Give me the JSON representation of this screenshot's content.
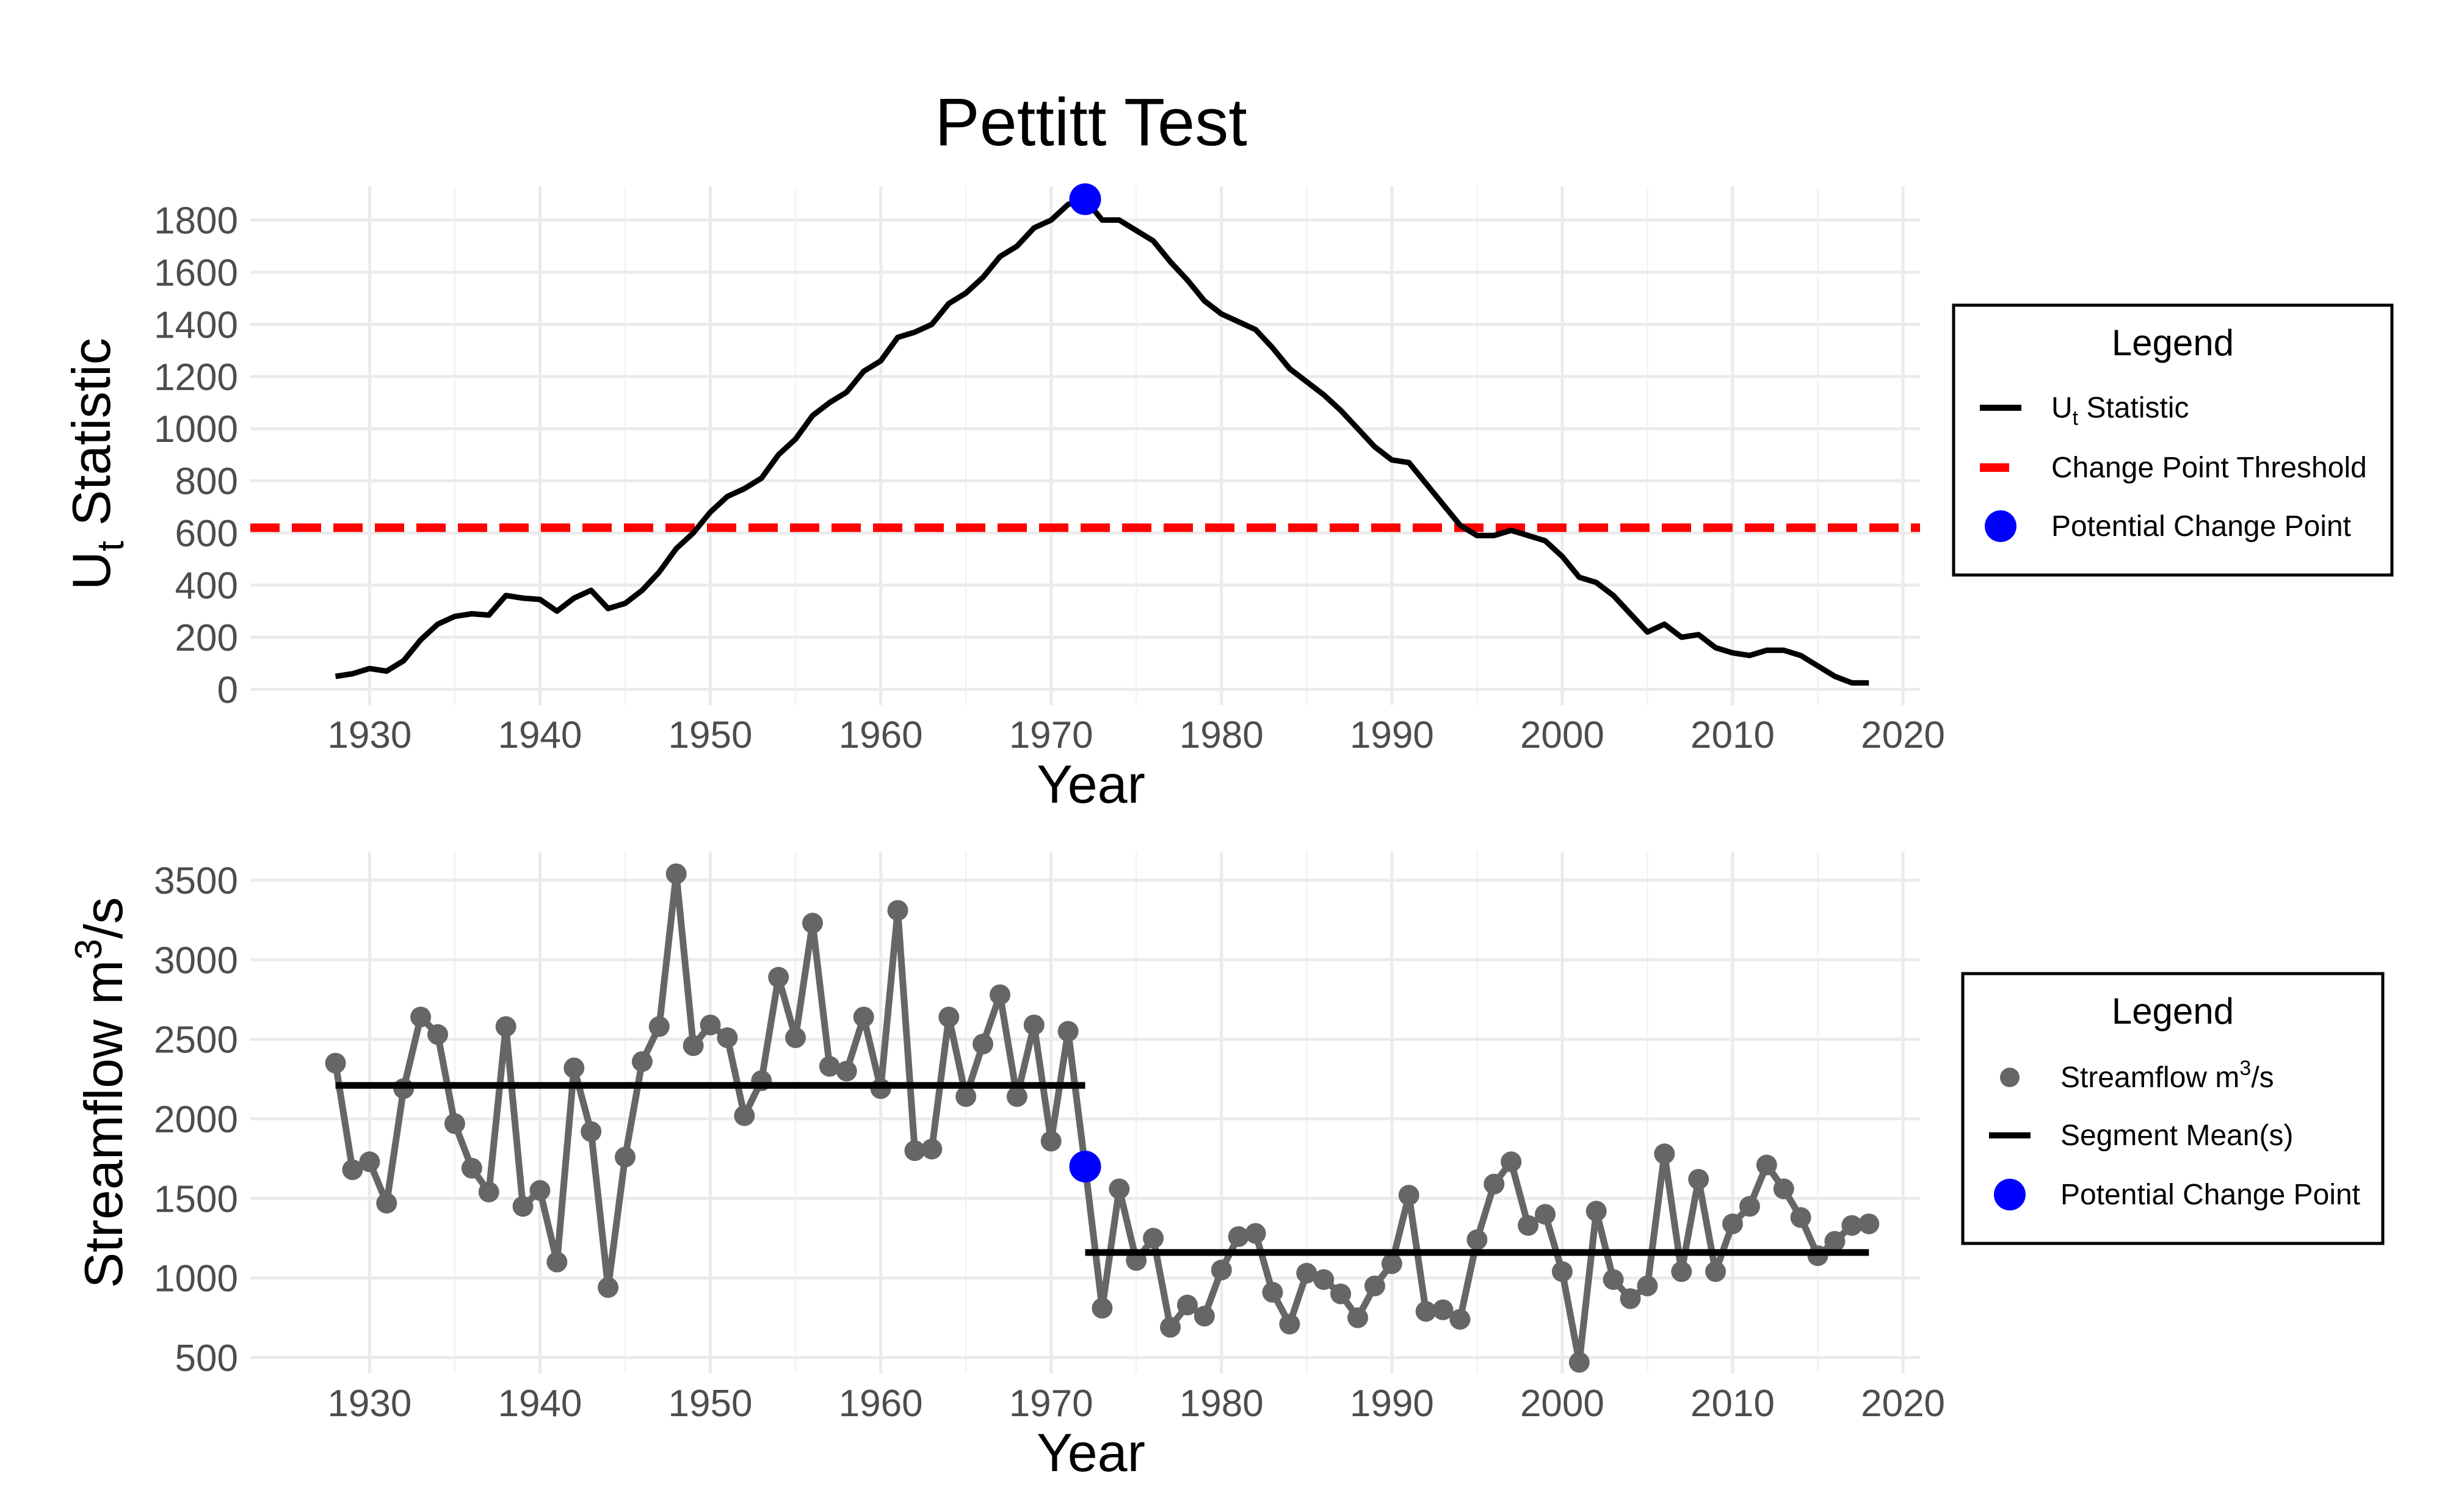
{
  "figure_title": "Pettitt Test",
  "chart_data": [
    {
      "type": "line",
      "title": "Pettitt Test",
      "xlabel": "Year",
      "ylabel": "U",
      "ylabel_subscript": "t",
      "ylabel_rest": " Statistic",
      "xlim": [
        1923,
        2021
      ],
      "ylim": [
        -60,
        1930
      ],
      "x_ticks": [
        1930,
        1940,
        1950,
        1960,
        1970,
        1980,
        1990,
        2000,
        2010,
        2020
      ],
      "y_ticks": [
        0,
        200,
        400,
        600,
        800,
        1000,
        1200,
        1400,
        1600,
        1800
      ],
      "grid": true,
      "threshold": 620,
      "series": [
        {
          "name": "Ut Statistic",
          "color": "#000000",
          "x": [
            1928,
            1929,
            1930,
            1931,
            1932,
            1933,
            1934,
            1935,
            1936,
            1937,
            1938,
            1939,
            1940,
            1941,
            1942,
            1943,
            1944,
            1945,
            1946,
            1947,
            1948,
            1949,
            1950,
            1951,
            1952,
            1953,
            1954,
            1955,
            1956,
            1957,
            1958,
            1959,
            1960,
            1961,
            1962,
            1963,
            1964,
            1965,
            1966,
            1967,
            1968,
            1969,
            1970,
            1971,
            1972,
            1973,
            1974,
            1975,
            1976,
            1977,
            1978,
            1979,
            1980,
            1981,
            1982,
            1983,
            1984,
            1985,
            1986,
            1987,
            1988,
            1989,
            1990,
            1991,
            1992,
            1993,
            1994,
            1995,
            1996,
            1997,
            1998,
            1999,
            2000,
            2001,
            2002,
            2003,
            2004,
            2005,
            2006,
            2007,
            2008,
            2009,
            2010,
            2011,
            2012,
            2013,
            2014,
            2015,
            2016,
            2017,
            2018
          ],
          "y": [
            50,
            60,
            80,
            70,
            110,
            190,
            250,
            280,
            290,
            285,
            360,
            350,
            345,
            300,
            350,
            380,
            310,
            330,
            380,
            450,
            540,
            600,
            680,
            740,
            770,
            810,
            900,
            960,
            1050,
            1100,
            1140,
            1220,
            1260,
            1350,
            1370,
            1400,
            1480,
            1520,
            1580,
            1660,
            1700,
            1770,
            1800,
            1860,
            1880,
            1800,
            1800,
            1760,
            1720,
            1640,
            1570,
            1490,
            1440,
            1410,
            1380,
            1310,
            1230,
            1180,
            1130,
            1070,
            1000,
            930,
            880,
            870,
            790,
            710,
            630,
            590,
            590,
            610,
            590,
            570,
            510,
            430,
            410,
            360,
            290,
            220,
            250,
            200,
            210,
            160,
            140,
            130,
            150,
            150,
            130,
            90,
            50,
            25,
            25
          ]
        }
      ],
      "threshold_name": "Change Point Threshold",
      "threshold_color": "#ff0000",
      "change_point": {
        "name": "Potential Change Point",
        "x": 1972,
        "y": 1880,
        "color": "#0000ff"
      },
      "legend": {
        "title": "Legend",
        "placement": "right",
        "items": [
          {
            "kind": "line",
            "label_main": "U",
            "label_sub": "t",
            "label_rest": " Statistic",
            "color": "#000000"
          },
          {
            "kind": "dashed",
            "label_main": "Change Point Threshold",
            "color": "#ff0000"
          },
          {
            "kind": "dot",
            "label_main": "Potential Change Point",
            "color": "#0000ff"
          }
        ]
      }
    },
    {
      "type": "line",
      "xlabel": "Year",
      "ylabel": "Streamflow m",
      "ylabel_superscript": "3",
      "ylabel_rest": "/s",
      "xlim": [
        1923,
        2021
      ],
      "ylim": [
        400,
        3680
      ],
      "x_ticks": [
        1930,
        1940,
        1950,
        1960,
        1970,
        1980,
        1990,
        2000,
        2010,
        2020
      ],
      "y_ticks": [
        500,
        1000,
        1500,
        2000,
        2500,
        3000,
        3500
      ],
      "grid": true,
      "series": [
        {
          "name": "Streamflow m3/s",
          "color": "#666666",
          "x": [
            1928,
            1929,
            1930,
            1931,
            1932,
            1933,
            1934,
            1935,
            1936,
            1937,
            1938,
            1939,
            1940,
            1941,
            1942,
            1943,
            1944,
            1945,
            1946,
            1947,
            1948,
            1949,
            1950,
            1951,
            1952,
            1953,
            1954,
            1955,
            1956,
            1957,
            1958,
            1959,
            1960,
            1961,
            1962,
            1963,
            1964,
            1965,
            1966,
            1967,
            1968,
            1969,
            1970,
            1971,
            1972,
            1973,
            1974,
            1975,
            1976,
            1977,
            1978,
            1979,
            1980,
            1981,
            1982,
            1983,
            1984,
            1985,
            1986,
            1987,
            1988,
            1989,
            1990,
            1991,
            1992,
            1993,
            1994,
            1995,
            1996,
            1997,
            1998,
            1999,
            2000,
            2001,
            2002,
            2003,
            2004,
            2005,
            2006,
            2007,
            2008,
            2009,
            2010,
            2011,
            2012,
            2013,
            2014,
            2015,
            2016,
            2017,
            2018
          ],
          "y": [
            2350,
            1680,
            1730,
            1470,
            2190,
            2640,
            2530,
            1970,
            1690,
            1540,
            2580,
            1450,
            1550,
            1100,
            2320,
            1920,
            940,
            1760,
            2360,
            2580,
            3540,
            2460,
            2590,
            2510,
            2020,
            2240,
            2890,
            2510,
            3230,
            2330,
            2300,
            2640,
            2190,
            3310,
            1800,
            1810,
            2640,
            2140,
            2470,
            2780,
            2140,
            2590,
            1860,
            2550,
            1700,
            810,
            1560,
            1110,
            1250,
            690,
            830,
            760,
            1050,
            1260,
            1280,
            910,
            710,
            1030,
            990,
            900,
            750,
            950,
            1090,
            1520,
            790,
            800,
            740,
            1240,
            1590,
            1730,
            1330,
            1400,
            1040,
            470,
            1420,
            990,
            870,
            950,
            1780,
            1040,
            1620,
            1040,
            1340,
            1450,
            1710,
            1560,
            1380,
            1140,
            1230,
            1330,
            1340
          ]
        },
        {
          "name": "Segment Mean(s)",
          "color": "#000000",
          "segments": [
            {
              "x": [
                1928,
                1972
              ],
              "y": [
                2210,
                2210
              ]
            },
            {
              "x": [
                1972,
                2018
              ],
              "y": [
                1160,
                1160
              ]
            }
          ]
        }
      ],
      "change_point": {
        "name": "Potential Change Point",
        "x": 1972,
        "y": 1700,
        "color": "#0000ff"
      },
      "legend": {
        "title": "Legend",
        "placement": "right",
        "items": [
          {
            "kind": "point",
            "label_main": "Streamflow m",
            "label_sup": "3",
            "label_rest": "/s",
            "color": "#666666"
          },
          {
            "kind": "line",
            "label_main": "Segment Mean(s)",
            "color": "#000000"
          },
          {
            "kind": "dot",
            "label_main": "Potential Change Point",
            "color": "#0000ff"
          }
        ]
      }
    }
  ]
}
